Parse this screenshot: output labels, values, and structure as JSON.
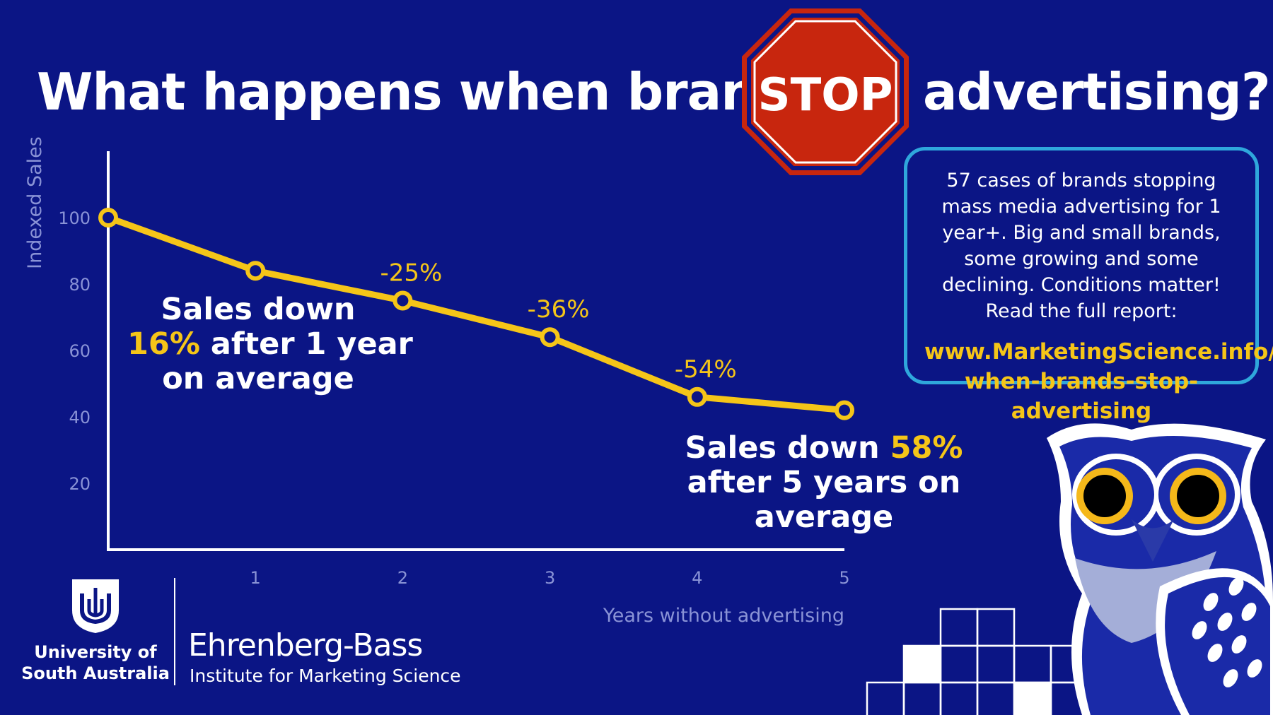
{
  "title": {
    "before": "What happens when brands",
    "stop": "STOP",
    "after": "advertising?"
  },
  "chart_data": {
    "type": "line",
    "x": [
      0,
      1,
      2,
      3,
      4,
      5
    ],
    "y": [
      100,
      84,
      75,
      64,
      46,
      42
    ],
    "xticks": [
      "1",
      "2",
      "3",
      "4",
      "5"
    ],
    "yticks": [
      "20",
      "40",
      "60",
      "80",
      "100"
    ],
    "xlabel": "Years without advertising",
    "ylabel": "Indexed Sales",
    "xlim": [
      0,
      5
    ],
    "ylim": [
      0,
      120
    ],
    "grid": false,
    "point_labels": [
      {
        "x": 2,
        "text": "-25%"
      },
      {
        "x": 3,
        "text": "-36%"
      },
      {
        "x": 4,
        "text": "-54%"
      }
    ],
    "line_color": "#f5c518"
  },
  "annotations": {
    "year1": {
      "line1": "Sales down",
      "pct": "16%",
      "line2_rest": " after 1 year",
      "line3": "on average"
    },
    "year5": {
      "prefix": "Sales down ",
      "pct": "58%",
      "line2": "after 5 years on",
      "line3": "average"
    }
  },
  "info_box": {
    "text": "57 cases of brands stopping mass media advertising for 1 year+. Big and small brands, some growing and some declining. Conditions matter! Read the full report:",
    "url_line1": "www.MarketingScience.info/",
    "url_line2": "when-brands-stop-advertising"
  },
  "logos": {
    "unisa_line1": "University of",
    "unisa_line2": "South Australia",
    "eb_name": "Ehrenberg-Bass",
    "eb_sub": "Institute for Marketing Science"
  },
  "colors": {
    "background": "#0b1585",
    "accent": "#f5c518",
    "stop_red": "#c8260e",
    "box_border": "#2fa7dc"
  }
}
